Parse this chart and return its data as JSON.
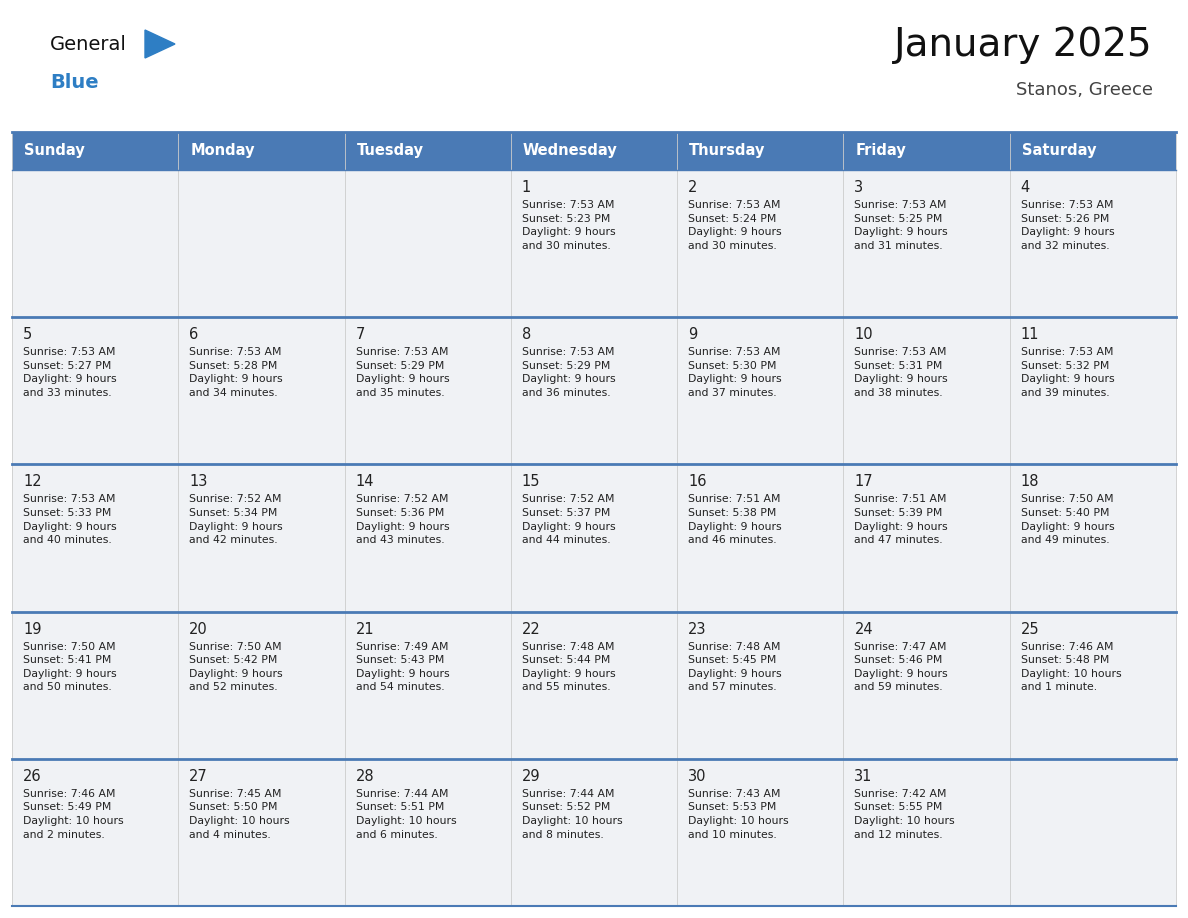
{
  "title": "January 2025",
  "subtitle": "Stanos, Greece",
  "days_of_week": [
    "Sunday",
    "Monday",
    "Tuesday",
    "Wednesday",
    "Thursday",
    "Friday",
    "Saturday"
  ],
  "header_bg": "#4a7ab5",
  "header_text_color": "#ffffff",
  "cell_bg": "#f0f2f5",
  "border_color": "#4a7ab5",
  "day_text_color": "#222222",
  "info_text_color": "#222222",
  "title_color": "#111111",
  "subtitle_color": "#444444",
  "blue_color": "#2e7ec4",
  "general_color": "#111111",
  "calendar": [
    [
      {
        "day": null,
        "info": ""
      },
      {
        "day": null,
        "info": ""
      },
      {
        "day": null,
        "info": ""
      },
      {
        "day": 1,
        "info": "Sunrise: 7:53 AM\nSunset: 5:23 PM\nDaylight: 9 hours\nand 30 minutes."
      },
      {
        "day": 2,
        "info": "Sunrise: 7:53 AM\nSunset: 5:24 PM\nDaylight: 9 hours\nand 30 minutes."
      },
      {
        "day": 3,
        "info": "Sunrise: 7:53 AM\nSunset: 5:25 PM\nDaylight: 9 hours\nand 31 minutes."
      },
      {
        "day": 4,
        "info": "Sunrise: 7:53 AM\nSunset: 5:26 PM\nDaylight: 9 hours\nand 32 minutes."
      }
    ],
    [
      {
        "day": 5,
        "info": "Sunrise: 7:53 AM\nSunset: 5:27 PM\nDaylight: 9 hours\nand 33 minutes."
      },
      {
        "day": 6,
        "info": "Sunrise: 7:53 AM\nSunset: 5:28 PM\nDaylight: 9 hours\nand 34 minutes."
      },
      {
        "day": 7,
        "info": "Sunrise: 7:53 AM\nSunset: 5:29 PM\nDaylight: 9 hours\nand 35 minutes."
      },
      {
        "day": 8,
        "info": "Sunrise: 7:53 AM\nSunset: 5:29 PM\nDaylight: 9 hours\nand 36 minutes."
      },
      {
        "day": 9,
        "info": "Sunrise: 7:53 AM\nSunset: 5:30 PM\nDaylight: 9 hours\nand 37 minutes."
      },
      {
        "day": 10,
        "info": "Sunrise: 7:53 AM\nSunset: 5:31 PM\nDaylight: 9 hours\nand 38 minutes."
      },
      {
        "day": 11,
        "info": "Sunrise: 7:53 AM\nSunset: 5:32 PM\nDaylight: 9 hours\nand 39 minutes."
      }
    ],
    [
      {
        "day": 12,
        "info": "Sunrise: 7:53 AM\nSunset: 5:33 PM\nDaylight: 9 hours\nand 40 minutes."
      },
      {
        "day": 13,
        "info": "Sunrise: 7:52 AM\nSunset: 5:34 PM\nDaylight: 9 hours\nand 42 minutes."
      },
      {
        "day": 14,
        "info": "Sunrise: 7:52 AM\nSunset: 5:36 PM\nDaylight: 9 hours\nand 43 minutes."
      },
      {
        "day": 15,
        "info": "Sunrise: 7:52 AM\nSunset: 5:37 PM\nDaylight: 9 hours\nand 44 minutes."
      },
      {
        "day": 16,
        "info": "Sunrise: 7:51 AM\nSunset: 5:38 PM\nDaylight: 9 hours\nand 46 minutes."
      },
      {
        "day": 17,
        "info": "Sunrise: 7:51 AM\nSunset: 5:39 PM\nDaylight: 9 hours\nand 47 minutes."
      },
      {
        "day": 18,
        "info": "Sunrise: 7:50 AM\nSunset: 5:40 PM\nDaylight: 9 hours\nand 49 minutes."
      }
    ],
    [
      {
        "day": 19,
        "info": "Sunrise: 7:50 AM\nSunset: 5:41 PM\nDaylight: 9 hours\nand 50 minutes."
      },
      {
        "day": 20,
        "info": "Sunrise: 7:50 AM\nSunset: 5:42 PM\nDaylight: 9 hours\nand 52 minutes."
      },
      {
        "day": 21,
        "info": "Sunrise: 7:49 AM\nSunset: 5:43 PM\nDaylight: 9 hours\nand 54 minutes."
      },
      {
        "day": 22,
        "info": "Sunrise: 7:48 AM\nSunset: 5:44 PM\nDaylight: 9 hours\nand 55 minutes."
      },
      {
        "day": 23,
        "info": "Sunrise: 7:48 AM\nSunset: 5:45 PM\nDaylight: 9 hours\nand 57 minutes."
      },
      {
        "day": 24,
        "info": "Sunrise: 7:47 AM\nSunset: 5:46 PM\nDaylight: 9 hours\nand 59 minutes."
      },
      {
        "day": 25,
        "info": "Sunrise: 7:46 AM\nSunset: 5:48 PM\nDaylight: 10 hours\nand 1 minute."
      }
    ],
    [
      {
        "day": 26,
        "info": "Sunrise: 7:46 AM\nSunset: 5:49 PM\nDaylight: 10 hours\nand 2 minutes."
      },
      {
        "day": 27,
        "info": "Sunrise: 7:45 AM\nSunset: 5:50 PM\nDaylight: 10 hours\nand 4 minutes."
      },
      {
        "day": 28,
        "info": "Sunrise: 7:44 AM\nSunset: 5:51 PM\nDaylight: 10 hours\nand 6 minutes."
      },
      {
        "day": 29,
        "info": "Sunrise: 7:44 AM\nSunset: 5:52 PM\nDaylight: 10 hours\nand 8 minutes."
      },
      {
        "day": 30,
        "info": "Sunrise: 7:43 AM\nSunset: 5:53 PM\nDaylight: 10 hours\nand 10 minutes."
      },
      {
        "day": 31,
        "info": "Sunrise: 7:42 AM\nSunset: 5:55 PM\nDaylight: 10 hours\nand 12 minutes."
      },
      {
        "day": null,
        "info": ""
      }
    ]
  ]
}
